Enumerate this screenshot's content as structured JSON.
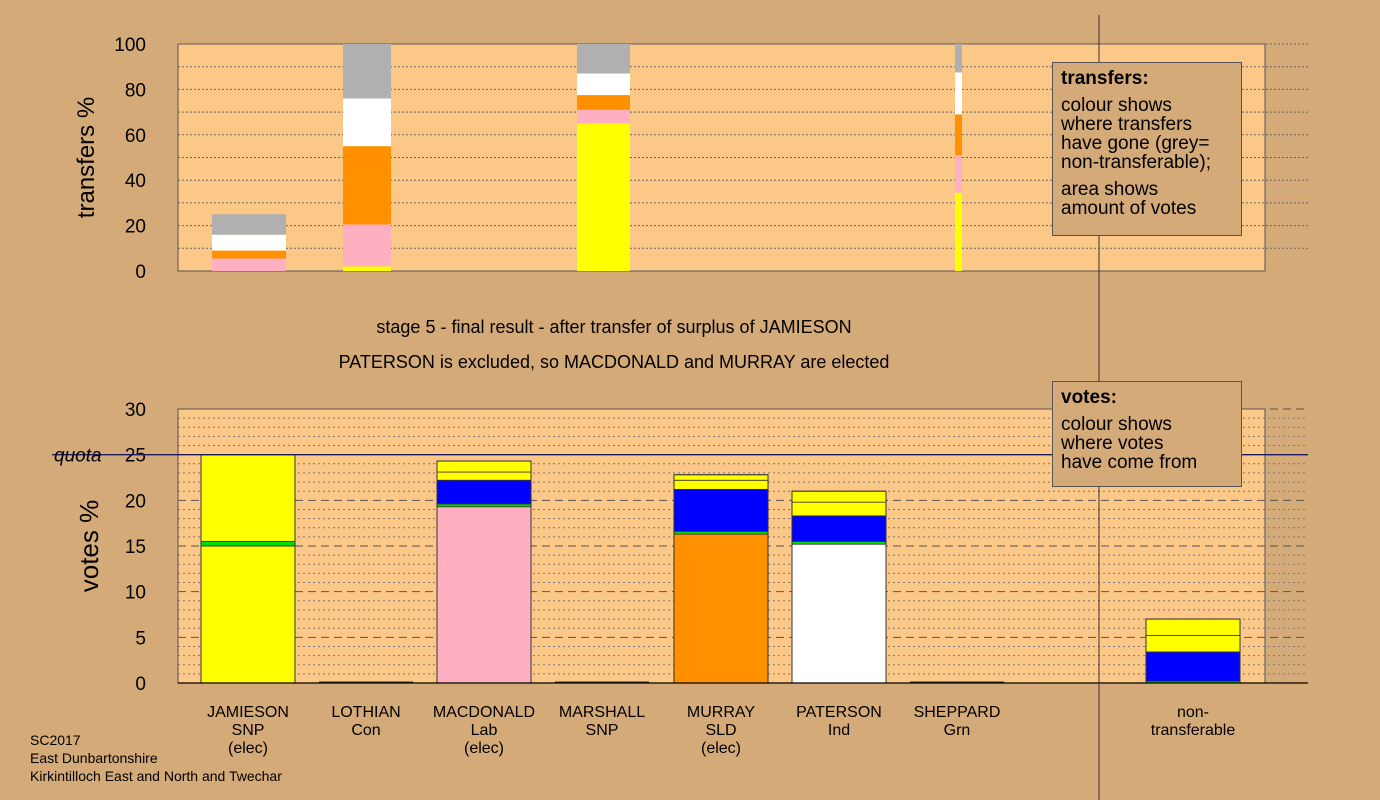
{
  "stage_text": "stage 5 - final result - after transfer of surplus of JAMIESON",
  "result_text": "PATERSON is excluded, so MACDONALD and MURRAY are elected",
  "legend_transfers": {
    "title": "transfers:",
    "line1": [
      "colour shows",
      "where transfers",
      "have gone (grey=",
      "non-transferable);"
    ],
    "line2": [
      "area shows",
      "amount of votes"
    ]
  },
  "legend_votes": {
    "title": "votes:",
    "line1": [
      "colour shows",
      "where votes",
      "have come from"
    ]
  },
  "footer": [
    "SC2017",
    "East Dunbartonshire",
    "Kirkintilloch East and North and Twechar"
  ],
  "colors": {
    "background": "#d4aa78",
    "plot": "#fcc888",
    "SNP": "#ffff00",
    "Con": "#0000ff",
    "Lab": "#ffb0c0",
    "SLD": "#ff9000",
    "Ind": "#ffffff",
    "Grn": "#00dd00",
    "nontransferable": "#b0b0b0"
  },
  "chart_data": [
    {
      "type": "bar",
      "stacked": true,
      "ylabel": "transfers %",
      "ylim": [
        0,
        100
      ],
      "yticks": [
        0,
        20,
        40,
        60,
        80,
        100
      ],
      "bars": [
        {
          "segments": [
            {
              "party": "Lab",
              "from": 0,
              "to": 5.5
            },
            {
              "party": "SLD",
              "from": 5.5,
              "to": 9
            },
            {
              "party": "Ind",
              "from": 9,
              "to": 16
            },
            {
              "party": "nontransferable",
              "from": 16,
              "to": 25
            }
          ]
        },
        {
          "segments": [
            {
              "party": "SNP",
              "from": 0,
              "to": 2
            },
            {
              "party": "Lab",
              "from": 2,
              "to": 20.5
            },
            {
              "party": "SLD",
              "from": 20.5,
              "to": 55
            },
            {
              "party": "Ind",
              "from": 55,
              "to": 76
            },
            {
              "party": "nontransferable",
              "from": 76,
              "to": 100
            }
          ]
        },
        {
          "segments": [
            {
              "party": "SNP",
              "from": 0,
              "to": 65
            },
            {
              "party": "Lab",
              "from": 65,
              "to": 71
            },
            {
              "party": "SLD",
              "from": 71,
              "to": 77.5
            },
            {
              "party": "Ind",
              "from": 77.5,
              "to": 87
            },
            {
              "party": "nontransferable",
              "from": 87,
              "to": 100
            }
          ]
        },
        {
          "segments": [
            {
              "party": "SNP",
              "from": 0,
              "to": 34.5
            },
            {
              "party": "Lab",
              "from": 34.5,
              "to": 51
            },
            {
              "party": "SLD",
              "from": 51,
              "to": 69
            },
            {
              "party": "Ind",
              "from": 69,
              "to": 87.5
            },
            {
              "party": "nontransferable",
              "from": 87.5,
              "to": 100
            }
          ]
        }
      ]
    },
    {
      "type": "bar",
      "stacked": true,
      "ylabel": "votes %",
      "ylim": [
        0,
        30
      ],
      "yticks": [
        0,
        5,
        10,
        15,
        20,
        25,
        30
      ],
      "quota": {
        "value": 25,
        "label": "quota"
      },
      "categories": [
        {
          "name": "JAMIESON",
          "party": "SNP",
          "status": "(elec)"
        },
        {
          "name": "LOTHIAN",
          "party": "Con",
          "status": ""
        },
        {
          "name": "MACDONALD",
          "party": "Lab",
          "status": "(elec)"
        },
        {
          "name": "MARSHALL",
          "party": "SNP",
          "status": ""
        },
        {
          "name": "MURRAY",
          "party": "SLD",
          "status": "(elec)"
        },
        {
          "name": "PATERSON",
          "party": "Ind",
          "status": ""
        },
        {
          "name": "SHEPPARD",
          "party": "Grn",
          "status": ""
        },
        {
          "name": "non-\ntransferable",
          "party": "",
          "status": ""
        }
      ],
      "bars": [
        {
          "segments": [
            {
              "party": "SNP",
              "from": 0,
              "to": 15
            },
            {
              "party": "Grn",
              "from": 15,
              "to": 15.5
            },
            {
              "party": "SNP",
              "from": 15.5,
              "to": 25
            }
          ]
        },
        {
          "segments": []
        },
        {
          "segments": [
            {
              "party": "Lab",
              "from": 0,
              "to": 19.3
            },
            {
              "party": "Grn",
              "from": 19.3,
              "to": 19.6
            },
            {
              "party": "Con",
              "from": 19.6,
              "to": 22.2
            },
            {
              "party": "SNP",
              "from": 22.2,
              "to": 23.1
            },
            {
              "party": "SNP",
              "from": 23.1,
              "to": 24.3
            }
          ]
        },
        {
          "segments": []
        },
        {
          "segments": [
            {
              "party": "SLD",
              "from": 0,
              "to": 16.3
            },
            {
              "party": "Grn",
              "from": 16.3,
              "to": 16.6
            },
            {
              "party": "Con",
              "from": 16.6,
              "to": 21.2
            },
            {
              "party": "SNP",
              "from": 21.2,
              "to": 22.2
            },
            {
              "party": "SNP",
              "from": 22.2,
              "to": 22.8
            }
          ]
        },
        {
          "segments": [
            {
              "party": "Ind",
              "from": 0,
              "to": 15.2
            },
            {
              "party": "Grn",
              "from": 15.2,
              "to": 15.5
            },
            {
              "party": "Con",
              "from": 15.5,
              "to": 18.3
            },
            {
              "party": "SNP",
              "from": 18.3,
              "to": 19.8
            },
            {
              "party": "SNP",
              "from": 19.8,
              "to": 21
            }
          ]
        },
        {
          "segments": []
        },
        {
          "segments": [
            {
              "party": "Grn",
              "from": 0,
              "to": 0.2
            },
            {
              "party": "Con",
              "from": 0.2,
              "to": 3.4
            },
            {
              "party": "SNP",
              "from": 3.4,
              "to": 5.2
            },
            {
              "party": "SNP",
              "from": 5.2,
              "to": 7
            }
          ]
        }
      ]
    }
  ]
}
